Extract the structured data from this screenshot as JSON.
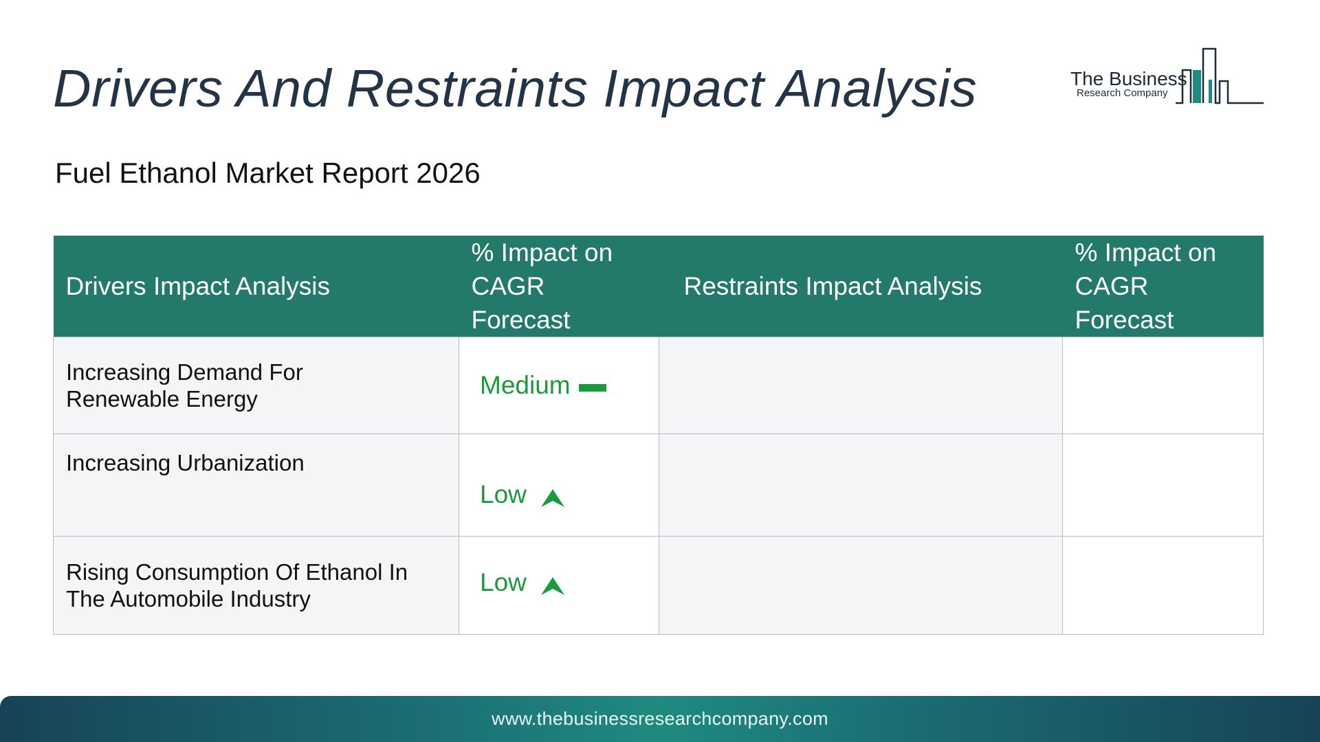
{
  "header": {
    "title": "Drivers And Restraints Impact Analysis",
    "subtitle": "Fuel Ethanol Market Report 2026"
  },
  "logo": {
    "name": "The Business",
    "sub": "Research Company",
    "icon": "building-bars-icon",
    "color": "#1f8a80"
  },
  "table": {
    "headers": {
      "drivers": "Drivers Impact Analysis",
      "drivers_impact_line1": "% Impact on",
      "drivers_impact_line2": "CAGR Forecast",
      "restraints": "Restraints Impact Analysis",
      "restraints_impact_line1": "% Impact on",
      "restraints_impact_line2": "CAGR Forecast"
    },
    "rows": [
      {
        "driver_line1": "Increasing Demand For",
        "driver_line2": "Renewable Energy",
        "impact": "Medium",
        "impact_icon": "dash-icon",
        "restraint": "",
        "restraint_impact": ""
      },
      {
        "driver_line1": "Increasing Urbanization",
        "driver_line2": "",
        "impact": "Low",
        "impact_icon": "arrow-up-icon",
        "restraint": "",
        "restraint_impact": ""
      },
      {
        "driver_line1": "Rising Consumption Of Ethanol In",
        "driver_line2": "The Automobile Industry",
        "impact": "Low",
        "impact_icon": "arrow-up-icon",
        "restraint": "",
        "restraint_impact": ""
      }
    ],
    "header_color": "#247a6a",
    "impact_color": "#1a9a3c"
  },
  "footer": {
    "url": "www.thebusinessresearchcompany.com"
  }
}
